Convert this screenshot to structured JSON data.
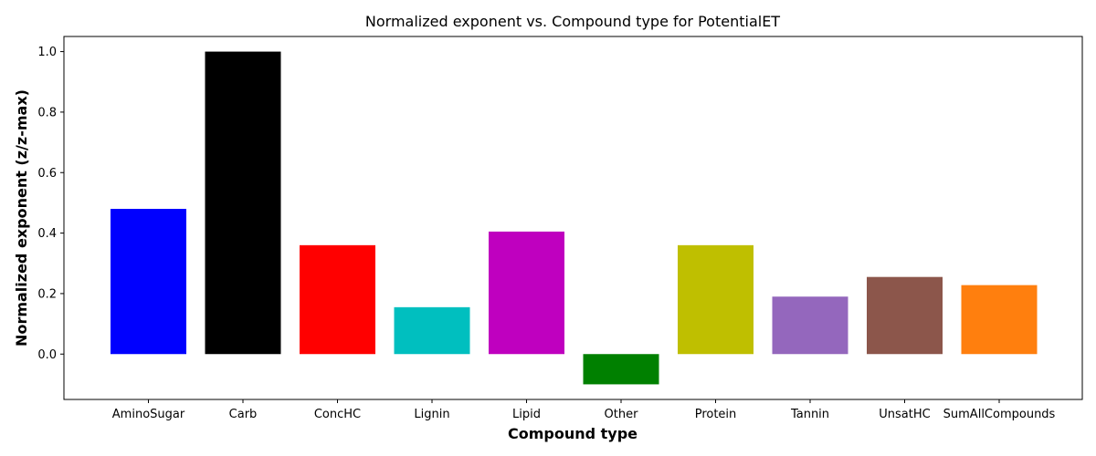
{
  "chart_data": {
    "type": "bar",
    "title": "Normalized exponent vs. Compound type for PotentialET",
    "xlabel": "Compound type",
    "ylabel": "Normalized exponent (z/z-max)",
    "ylim": [
      -0.15,
      1.05
    ],
    "yticks": [
      "0.0",
      "0.2",
      "0.4",
      "0.6",
      "0.8",
      "1.0"
    ],
    "grid": false,
    "categories": [
      "AminoSugar",
      "Carb",
      "ConcHC",
      "Lignin",
      "Lipid",
      "Other",
      "Protein",
      "Tannin",
      "UnsatHC",
      "SumAllCompounds"
    ],
    "values": [
      0.48,
      1.0,
      0.36,
      0.155,
      0.405,
      -0.1,
      0.36,
      0.19,
      0.255,
      0.228
    ],
    "colors": [
      "#0000ff",
      "#000000",
      "#ff0000",
      "#00bfbf",
      "#bf00bf",
      "#008000",
      "#bfbf00",
      "#9467bd",
      "#8c564b",
      "#ff7f0e"
    ]
  }
}
